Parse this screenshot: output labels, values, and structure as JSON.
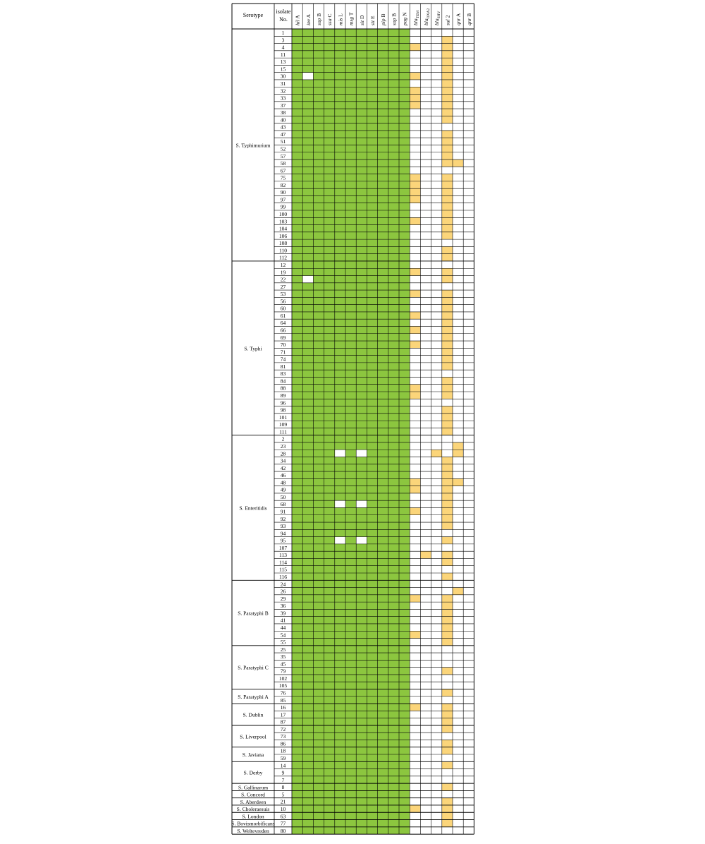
{
  "chart_data": {
    "type": "heatmap",
    "header": {
      "serotype": "Serotype",
      "isolate_line1": "isolate",
      "isolate_line2": "No."
    },
    "genes": [
      {
        "base": "hil",
        "it": "",
        "tail": "A",
        "sub": ""
      },
      {
        "base": "inv",
        "it": "",
        "tail": "A",
        "sub": ""
      },
      {
        "base": "sop",
        "it": "",
        "tail": "B",
        "sub": ""
      },
      {
        "base": "ssa",
        "it": "",
        "tail": "C",
        "sub": ""
      },
      {
        "base": "mis",
        "it": "",
        "tail": "L",
        "sub": ""
      },
      {
        "base": "msg",
        "it": "",
        "tail": "T",
        "sub": ""
      },
      {
        "base": "sit",
        "it": "",
        "tail": "D",
        "sub": ""
      },
      {
        "base": "sit",
        "it": "",
        "tail": "E",
        "sub": ""
      },
      {
        "base": "pip",
        "it": "",
        "tail": "B",
        "sub": ""
      },
      {
        "base": "sop",
        "it": "",
        "tail": "B",
        "sub": ""
      },
      {
        "base": "pag",
        "it": "",
        "tail": "N",
        "sub": ""
      },
      {
        "base": "bla",
        "it": "",
        "tail": "",
        "sub": "TEM"
      },
      {
        "base": "bla",
        "it": "",
        "tail": "",
        "sub": "OXA2"
      },
      {
        "base": "bla",
        "it": "",
        "tail": "",
        "sub": "SHV"
      },
      {
        "base": "sul",
        "it": "",
        "tail": "2",
        "sub": ""
      },
      {
        "base": "qnr",
        "it": "",
        "tail": "A",
        "sub": ""
      },
      {
        "base": "qnr",
        "it": "",
        "tail": "B",
        "sub": ""
      }
    ],
    "legend_colors": {
      "present_virulence": "#8cc63f",
      "present_resistance": "#fbd57a",
      "absent": "#ffffff"
    },
    "groups": [
      {
        "serotype": "S. Typhimurium",
        "isolates": [
          {
            "no": "1",
            "p": "11111111111000000"
          },
          {
            "no": "3",
            "p": "11111111111000100"
          },
          {
            "no": "4",
            "p": "11111111111100100"
          },
          {
            "no": "11",
            "p": "11111111111000100"
          },
          {
            "no": "13",
            "p": "11111111111000100"
          },
          {
            "no": "15",
            "p": "11111111111000100"
          },
          {
            "no": "30",
            "p": "10111111111100100"
          },
          {
            "no": "31",
            "p": "11111111111000100"
          },
          {
            "no": "32",
            "p": "11111111111100100"
          },
          {
            "no": "33",
            "p": "11111111111100100"
          },
          {
            "no": "37",
            "p": "11111111111100100"
          },
          {
            "no": "38",
            "p": "11111111111000100"
          },
          {
            "no": "40",
            "p": "11111111111000100"
          },
          {
            "no": "43",
            "p": "11111111111000000"
          },
          {
            "no": "47",
            "p": "11111111111000100"
          },
          {
            "no": "51",
            "p": "11111111111000100"
          },
          {
            "no": "52",
            "p": "11111111111000100"
          },
          {
            "no": "57",
            "p": "11111111111000100"
          },
          {
            "no": "58",
            "p": "11111111111000110"
          },
          {
            "no": "67",
            "p": "11111111111000000"
          },
          {
            "no": "75",
            "p": "11111111111100100"
          },
          {
            "no": "82",
            "p": "11111111111100100"
          },
          {
            "no": "90",
            "p": "11111111111100100"
          },
          {
            "no": "97",
            "p": "11111111111100100"
          },
          {
            "no": "99",
            "p": "11111111111000100"
          },
          {
            "no": "100",
            "p": "11111111111000100"
          },
          {
            "no": "103",
            "p": "11111111111100100"
          },
          {
            "no": "104",
            "p": "11111111111000100"
          },
          {
            "no": "106",
            "p": "11111111111000100"
          },
          {
            "no": "108",
            "p": "11111111111000000"
          },
          {
            "no": "110",
            "p": "11111111111000100"
          },
          {
            "no": "112",
            "p": "11111111111000100"
          }
        ]
      },
      {
        "serotype": "S. Typhi",
        "isolates": [
          {
            "no": "12",
            "p": "11111111111000000"
          },
          {
            "no": "19",
            "p": "11111111111100100"
          },
          {
            "no": "22",
            "p": "10111111111000100"
          },
          {
            "no": "27",
            "p": "11111111111000000"
          },
          {
            "no": "53",
            "p": "11111111111100100"
          },
          {
            "no": "56",
            "p": "11111111111000100"
          },
          {
            "no": "60",
            "p": "11111111111000100"
          },
          {
            "no": "61",
            "p": "11111111111100100"
          },
          {
            "no": "64",
            "p": "11111111111000100"
          },
          {
            "no": "66",
            "p": "11111111111100100"
          },
          {
            "no": "69",
            "p": "11111111111000100"
          },
          {
            "no": "70",
            "p": "11111111111100100"
          },
          {
            "no": "71",
            "p": "11111111111000100"
          },
          {
            "no": "74",
            "p": "11111111111000100"
          },
          {
            "no": "81",
            "p": "11111111111000100"
          },
          {
            "no": "83",
            "p": "11111111111000000"
          },
          {
            "no": "84",
            "p": "11111111111000100"
          },
          {
            "no": "88",
            "p": "11111111111100100"
          },
          {
            "no": "89",
            "p": "11111111111100100"
          },
          {
            "no": "96",
            "p": "11111111111000000"
          },
          {
            "no": "98",
            "p": "11111111111000100"
          },
          {
            "no": "101",
            "p": "11111111111000100"
          },
          {
            "no": "109",
            "p": "11111111111000100"
          },
          {
            "no": "111",
            "p": "11111111111000100"
          }
        ]
      },
      {
        "serotype": "S. Enteritidis",
        "isolates": [
          {
            "no": "2",
            "p": "11111111111000000"
          },
          {
            "no": "23",
            "p": "11111111111000010"
          },
          {
            "no": "28",
            "p": "11110101111001010"
          },
          {
            "no": "34",
            "p": "11111111111000100"
          },
          {
            "no": "42",
            "p": "11111111111000100"
          },
          {
            "no": "46",
            "p": "11111111111000100"
          },
          {
            "no": "48",
            "p": "11111111111100110"
          },
          {
            "no": "49",
            "p": "11111111111100100"
          },
          {
            "no": "50",
            "p": "11111111111000100"
          },
          {
            "no": "68",
            "p": "11110101111000100"
          },
          {
            "no": "91",
            "p": "11111111111100100"
          },
          {
            "no": "92",
            "p": "11111111111000100"
          },
          {
            "no": "93",
            "p": "11111111111000100"
          },
          {
            "no": "94",
            "p": "11111111111000000"
          },
          {
            "no": "95",
            "p": "11110101111000100"
          },
          {
            "no": "107",
            "p": "11111111111000000"
          },
          {
            "no": "113",
            "p": "11111111111010100"
          },
          {
            "no": "114",
            "p": "11111111111000100"
          },
          {
            "no": "115",
            "p": "11111111111000000"
          },
          {
            "no": "116",
            "p": "11111111111000100"
          }
        ]
      },
      {
        "serotype": "S. Paratyphi B",
        "isolates": [
          {
            "no": "24",
            "p": "11111111111000000"
          },
          {
            "no": "26",
            "p": "11111111111000010"
          },
          {
            "no": "29",
            "p": "11111111111100100"
          },
          {
            "no": "36",
            "p": "11111111111000100"
          },
          {
            "no": "39",
            "p": "11111111111000100"
          },
          {
            "no": "41",
            "p": "11111111111000100"
          },
          {
            "no": "44",
            "p": "11111111111000100"
          },
          {
            "no": "54",
            "p": "11111111111100100"
          },
          {
            "no": "55",
            "p": "11111111111000100"
          }
        ]
      },
      {
        "serotype": "S. Paratyphi C",
        "isolates": [
          {
            "no": "25",
            "p": "11111111111000000"
          },
          {
            "no": "35",
            "p": "11111111111000000"
          },
          {
            "no": "45",
            "p": "11111111111000000"
          },
          {
            "no": "79",
            "p": "11111111111000100"
          },
          {
            "no": "102",
            "p": "11111111111000000"
          },
          {
            "no": "105",
            "p": "11111111111000000"
          }
        ]
      },
      {
        "serotype": "S. Paratyphi A",
        "isolates": [
          {
            "no": "76",
            "p": "11111111111000100"
          },
          {
            "no": "85",
            "p": "11111111111000000"
          }
        ]
      },
      {
        "serotype": "S. Dublin",
        "isolates": [
          {
            "no": "16",
            "p": "11111111111100100"
          },
          {
            "no": "17",
            "p": "11111111111000100"
          },
          {
            "no": "87",
            "p": "11111111111000100"
          }
        ]
      },
      {
        "serotype": "S. Liverpool",
        "isolates": [
          {
            "no": "72",
            "p": "11111111111000100"
          },
          {
            "no": "73",
            "p": "11111111111000000"
          },
          {
            "no": "86",
            "p": "11111111111000100"
          }
        ]
      },
      {
        "serotype": "S. Javiana",
        "isolates": [
          {
            "no": "18",
            "p": "11111111111000100"
          },
          {
            "no": "59",
            "p": "11111111111000000"
          }
        ]
      },
      {
        "serotype": "S. Derby",
        "isolates": [
          {
            "no": "14",
            "p": "11111111111000100"
          },
          {
            "no": "9",
            "p": "11111111111000000"
          },
          {
            "no": "7",
            "p": "11111111111000000"
          }
        ]
      },
      {
        "serotype": "S. Gallinarum",
        "isolates": [
          {
            "no": "8",
            "p": "11111111111000100"
          }
        ]
      },
      {
        "serotype": "S. Concord",
        "isolates": [
          {
            "no": "5",
            "p": "11111111111000000"
          }
        ]
      },
      {
        "serotype": "S. Aberdeen",
        "isolates": [
          {
            "no": "21",
            "p": "11111111111000100"
          }
        ]
      },
      {
        "serotype": "S. Choleraesuis",
        "isolates": [
          {
            "no": "10",
            "p": "11111111111100100"
          }
        ]
      },
      {
        "serotype": "S. London",
        "isolates": [
          {
            "no": "63",
            "p": "11111111111000100"
          }
        ]
      },
      {
        "serotype": "S. Bovismorbificans",
        "isolates": [
          {
            "no": "77",
            "p": "11111111111000100"
          }
        ]
      },
      {
        "serotype": "S. Weltevreden",
        "isolates": [
          {
            "no": "80",
            "p": "11111111111000000"
          }
        ]
      }
    ]
  }
}
